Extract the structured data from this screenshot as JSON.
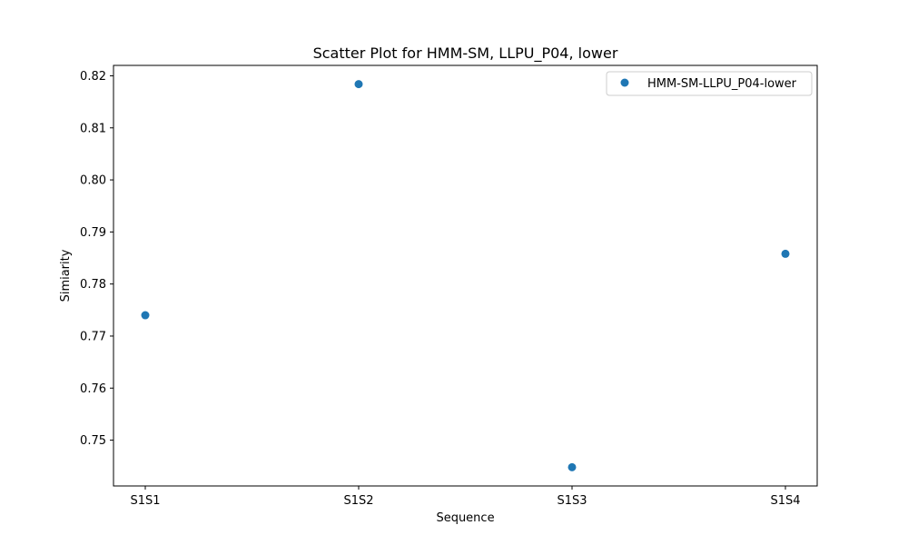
{
  "chart_data": {
    "type": "scatter",
    "title": "Scatter Plot for HMM-SM, LLPU_P04, lower",
    "xlabel": "Sequence",
    "ylabel": "Simiarity",
    "categories": [
      "S1S1",
      "S1S2",
      "S1S3",
      "S1S4"
    ],
    "series": [
      {
        "name": "HMM-SM-LLPU_P04-lower",
        "values": [
          0.774,
          0.8184,
          0.7448,
          0.7858
        ],
        "color": "#1f77b4"
      }
    ],
    "ylim": [
      0.7412,
      0.822
    ],
    "yticks": [
      "0.75",
      "0.76",
      "0.77",
      "0.78",
      "0.79",
      "0.80",
      "0.81",
      "0.82"
    ],
    "grid": false,
    "legend_position": "top-right"
  }
}
